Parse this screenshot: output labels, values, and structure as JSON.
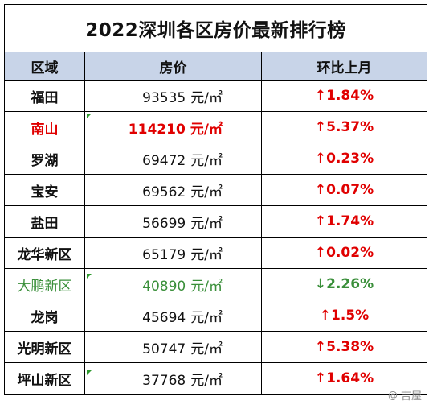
{
  "title": "2022深圳各区房价最新排行榜",
  "headers": {
    "district": "区域",
    "price": "房价",
    "change": "环比上月"
  },
  "unit": "元/㎡",
  "rows": [
    {
      "district": "福田",
      "price": "93535",
      "arrow": "↑",
      "change": "1.84%"
    },
    {
      "district": "南山",
      "price": "114210",
      "arrow": "↑",
      "change": "5.37%"
    },
    {
      "district": "罗湖",
      "price": "69472",
      "arrow": "↑",
      "change": "0.23%"
    },
    {
      "district": "宝安",
      "price": "69562",
      "arrow": "↑",
      "change": "0.07%"
    },
    {
      "district": "盐田",
      "price": "56699",
      "arrow": "↑",
      "change": "1.74%"
    },
    {
      "district": "龙华新区",
      "price": "65179",
      "arrow": "↑",
      "change": "0.02%"
    },
    {
      "district": "大鹏新区",
      "price": "40890",
      "arrow": "↓",
      "change": "2.26%"
    },
    {
      "district": "龙岗",
      "price": "45694",
      "arrow": "↑",
      "change": "1.5%"
    },
    {
      "district": "光明新区",
      "price": "50747",
      "arrow": "↑",
      "change": "5.38%"
    },
    {
      "district": "坪山新区",
      "price": "37768",
      "arrow": "↑",
      "change": "1.64%"
    }
  ],
  "colors": {
    "header_bg": "#c8d4e8",
    "up": "#e00000",
    "down": "#3a8f3a"
  },
  "watermark": {
    "icon": "at-icon",
    "text": "吉屋"
  }
}
